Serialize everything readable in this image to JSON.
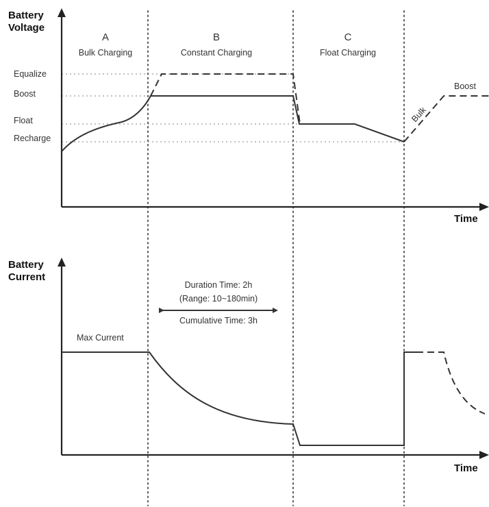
{
  "voltage_chart": {
    "y_axis_title": [
      "Battery",
      "Voltage"
    ],
    "x_axis_title": "Time",
    "level_labels": {
      "equalize": "Equalize",
      "boost": "Boost",
      "float": "Float",
      "recharge": "Recharge"
    },
    "stages": [
      {
        "letter": "A",
        "name": "Bulk Charging"
      },
      {
        "letter": "B",
        "name": "Constant Charging"
      },
      {
        "letter": "C",
        "name": "Float Charging"
      }
    ],
    "bulk_label": "Bulk",
    "boost_label": "Boost"
  },
  "current_chart": {
    "y_axis_title": [
      "Battery",
      "Current"
    ],
    "x_axis_title": "Time",
    "max_current_label": "Max Current",
    "duration_label": "Duration Time: 2h",
    "range_label": "(Range: 10~180min)",
    "cumulative_label": "Cumulative Time: 3h"
  }
}
